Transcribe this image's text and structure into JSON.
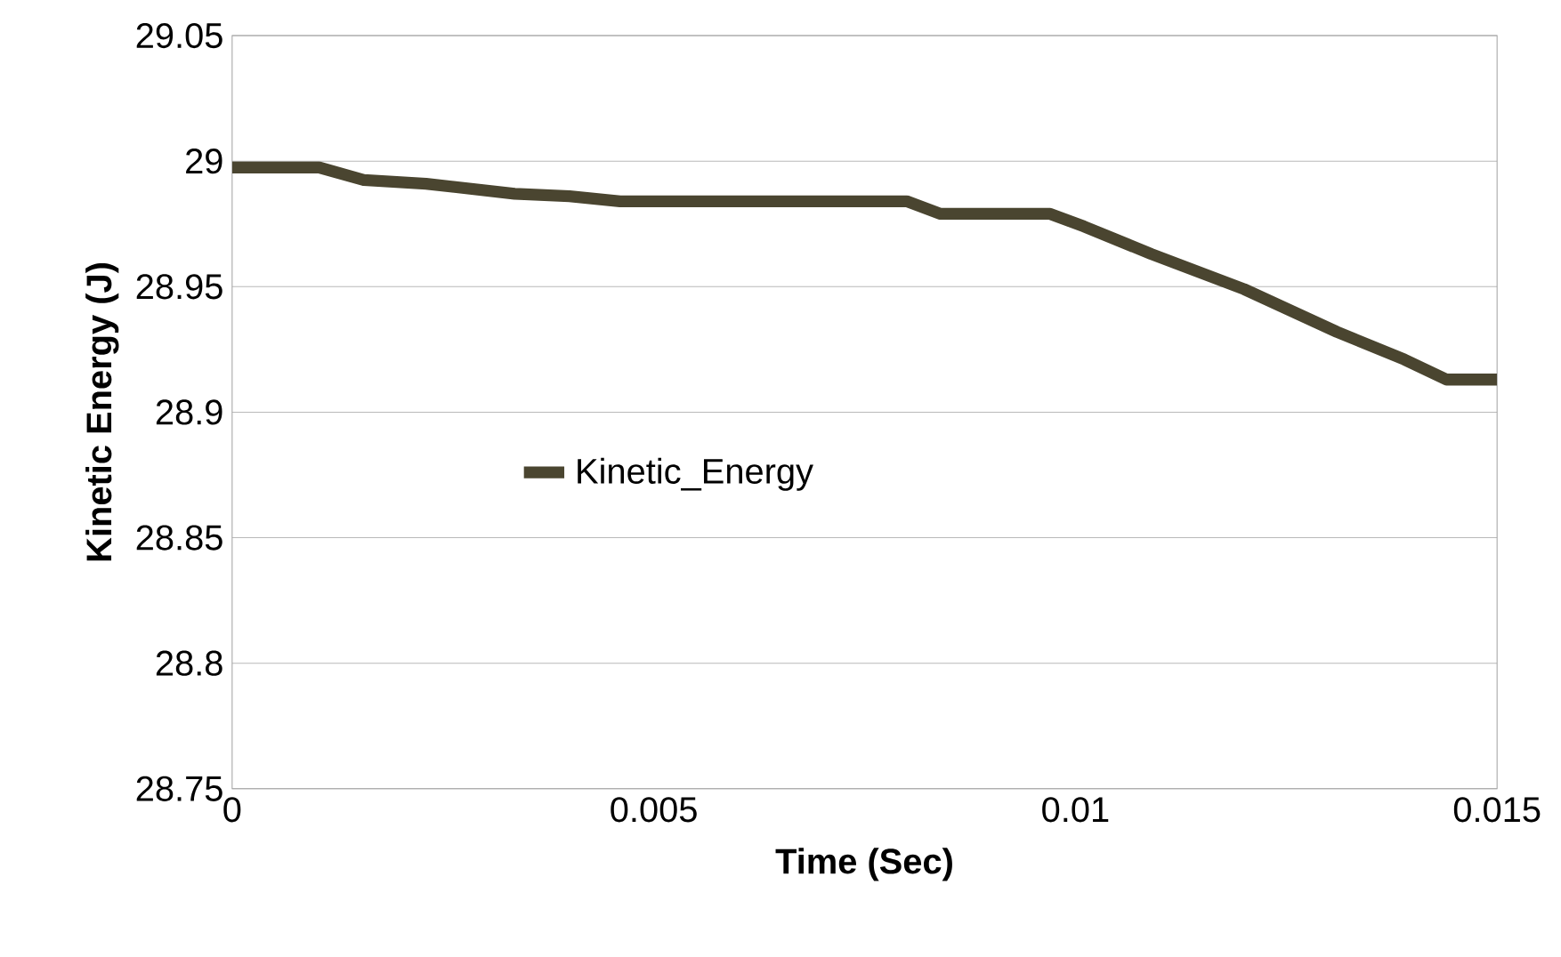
{
  "chart_data": {
    "type": "line",
    "xlabel": "Time (Sec)",
    "ylabel": "Kinetic Energy (J)",
    "xlim": [
      0,
      0.015
    ],
    "xticks": [
      0,
      0.005,
      0.01,
      0.015
    ],
    "ylim": [
      28.75,
      29.05
    ],
    "yticks": [
      28.75,
      28.8,
      28.85,
      28.9,
      28.95,
      29,
      29.05
    ],
    "grid": "y",
    "legend": "left",
    "marker": "none",
    "line_style": "solid",
    "series": [
      {
        "name": "Kinetic_Energy",
        "color": "#4a4530",
        "x": [
          0,
          0.00103,
          0.00156,
          0.0023,
          0.00335,
          0.004,
          0.0046,
          0.008,
          0.0084,
          0.0097,
          0.0101,
          0.0109,
          0.012,
          0.0131,
          0.0139,
          0.0144,
          0.015
        ],
        "values": [
          28.9975,
          28.9975,
          28.9925,
          28.991,
          28.987,
          28.986,
          28.984,
          28.984,
          28.979,
          28.979,
          28.974,
          28.963,
          28.949,
          28.932,
          28.921,
          28.913,
          28.913
        ]
      }
    ]
  }
}
